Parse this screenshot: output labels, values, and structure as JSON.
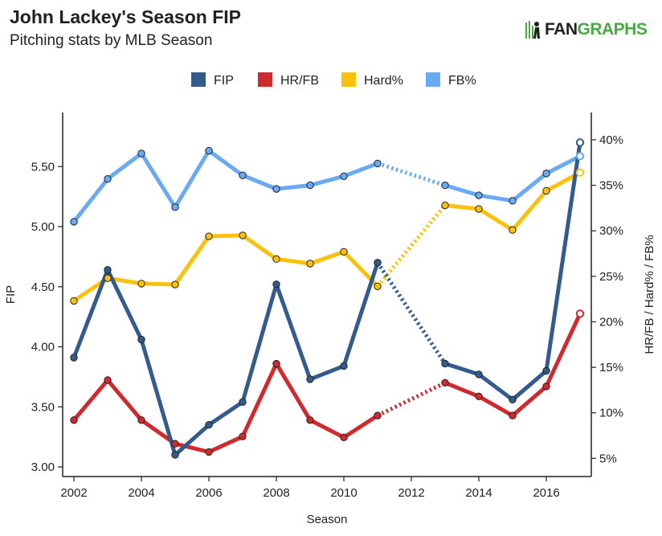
{
  "header": {
    "title": "John Lackey's Season FIP",
    "subtitle": "Pitching stats by MLB Season",
    "logo_part1": "FAN",
    "logo_part2": "GRAPHS"
  },
  "colors": {
    "fip": "#335b8e",
    "hrfb": "#d12a2e",
    "hard": "#fcc20b",
    "fb": "#6aaaf4",
    "logo_green": "#4ba943",
    "logo_dark": "#231f20"
  },
  "chart_data": {
    "type": "line",
    "xlabel": "Season",
    "ylabel_left": "FIP",
    "ylabel_right": "HR/FB / Hard% / FB%",
    "xlim": [
      2002,
      2017
    ],
    "ylim_left": [
      2.92,
      5.95
    ],
    "ylim_right": [
      3.0,
      43.0
    ],
    "x_ticks": [
      2002,
      2004,
      2006,
      2008,
      2010,
      2012,
      2014,
      2016
    ],
    "x_tick_labels": [
      "2002",
      "2004",
      "2006",
      "2008",
      "2010",
      "2012",
      "2014",
      "2016"
    ],
    "y_left_ticks": [
      3.0,
      3.5,
      4.0,
      4.5,
      5.0,
      5.5
    ],
    "y_left_tick_labels": [
      "3.00",
      "3.50",
      "4.00",
      "4.50",
      "5.00",
      "5.50"
    ],
    "y_right_ticks": [
      5,
      10,
      15,
      20,
      25,
      30,
      35,
      40
    ],
    "y_right_tick_labels": [
      "5%",
      "10%",
      "15%",
      "20%",
      "25%",
      "30%",
      "35%",
      "40%"
    ],
    "legend_position": "top-center",
    "grid": false,
    "x": [
      2002,
      2003,
      2004,
      2005,
      2006,
      2007,
      2008,
      2009,
      2010,
      2011,
      2013,
      2014,
      2015,
      2016,
      2017
    ],
    "series": [
      {
        "name": "FIP",
        "axis": "left",
        "color_key": "fip",
        "values": [
          3.91,
          4.64,
          4.06,
          3.1,
          3.35,
          3.54,
          4.52,
          3.73,
          3.84,
          4.7,
          3.86,
          3.77,
          3.56,
          3.8,
          5.7
        ]
      },
      {
        "name": "HR/FB",
        "axis": "right",
        "color_key": "hrfb",
        "values": [
          9.2,
          13.6,
          9.2,
          6.6,
          5.7,
          7.4,
          15.4,
          9.2,
          7.3,
          9.7,
          13.3,
          11.8,
          9.7,
          12.9,
          20.9
        ]
      },
      {
        "name": "Hard%",
        "axis": "right",
        "color_key": "hard",
        "values": [
          22.3,
          24.8,
          24.2,
          24.1,
          29.4,
          29.5,
          26.9,
          26.4,
          27.7,
          23.9,
          32.8,
          32.4,
          30.1,
          34.4,
          36.4
        ]
      },
      {
        "name": "FB%",
        "axis": "right",
        "color_key": "fb",
        "values": [
          31.0,
          35.7,
          38.5,
          32.6,
          38.8,
          36.1,
          34.6,
          35.0,
          36.0,
          37.4,
          35.0,
          33.9,
          33.3,
          36.3,
          38.2
        ]
      }
    ]
  }
}
